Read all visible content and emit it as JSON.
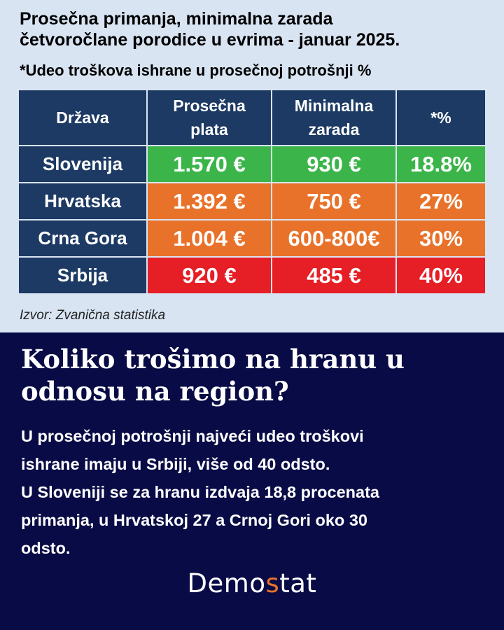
{
  "title_lines": [
    "Prosečna primanja, minimalna zarada",
    "četvoročlane porodice u evrima - januar 2025."
  ],
  "subtitle": "*Udeo troškova ishrane u prosečnoj potrošnji %",
  "table": {
    "headers": {
      "country": "Država",
      "avg_line1": "Prosečna",
      "avg_line2": "plata",
      "min_line1": "Minimalna",
      "min_line2": "zarada",
      "pct": "*%"
    },
    "rows": [
      {
        "country": "Slovenija",
        "avg": "1.570 €",
        "min": "930 €",
        "pct": "18.8%",
        "color": "#3bb54a"
      },
      {
        "country": "Hrvatska",
        "avg": "1.392 €",
        "min": "750 €",
        "pct": "27%",
        "color": "#e8722a"
      },
      {
        "country": "Crna Gora",
        "avg": "1.004 €",
        "min": "600-800€",
        "pct": "30%",
        "color": "#e8722a"
      },
      {
        "country": "Srbija",
        "avg": "920 €",
        "min": "485 €",
        "pct": "40%",
        "color": "#e61e26"
      }
    ]
  },
  "source": "Izvor: Zvanična statistika",
  "headline_lines": [
    "Koliko trošimo na hranu u",
    "odnosu na region?"
  ],
  "body_lines": [
    "U prosečnoj potrošnji najveći udeo troškovi",
    "ishrane imaju u Srbiji, više od 40 odsto.",
    "U Sloveniji se za hranu izdvaja 18,8 procenata",
    "primanja, u Hrvatskoj 27 a Crnoj Gori oko 30",
    "odsto."
  ],
  "logo": {
    "part1": "Demo",
    "part2": "s",
    "part3": "tat"
  },
  "colors": {
    "top_background": "#d9e4f3",
    "header_navy": "#1c3a63",
    "green": "#3bb54a",
    "orange": "#e8722a",
    "red": "#e61e26",
    "bottom_background": "#080b45"
  }
}
